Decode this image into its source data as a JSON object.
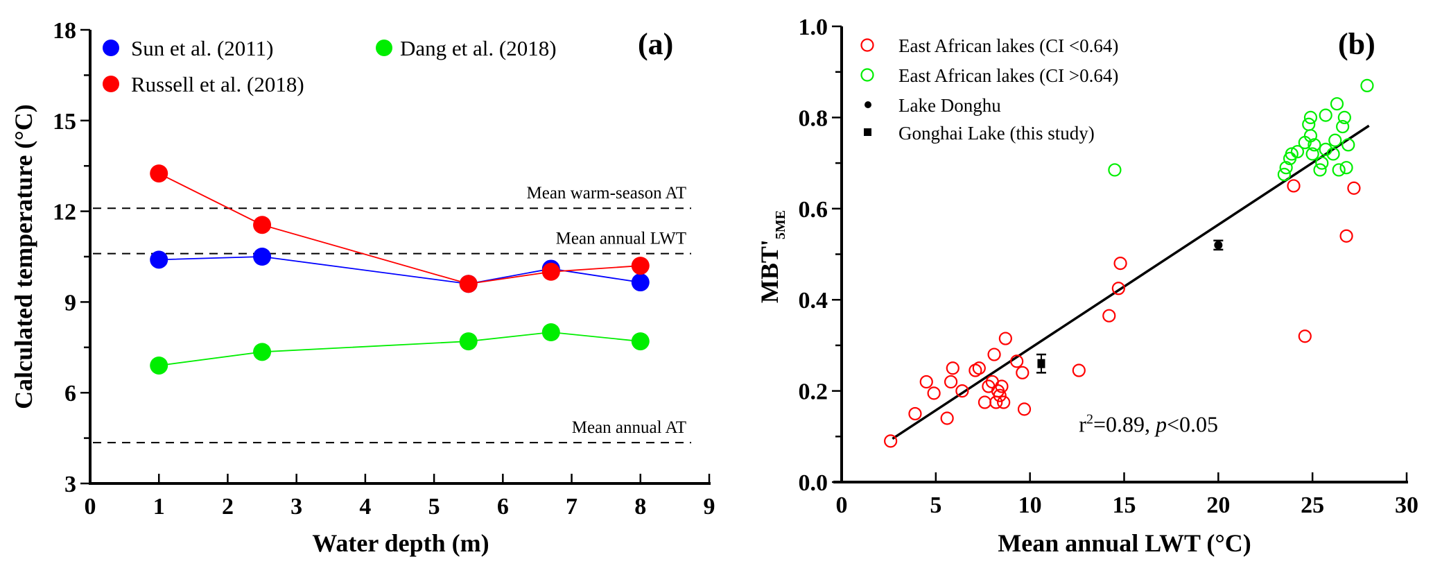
{
  "chart_data": [
    {
      "panel": "(a)",
      "type": "line",
      "title": "",
      "xlabel": "Water depth (m)",
      "ylabel": "Calculated temperature (°C)",
      "xlim": [
        0,
        9
      ],
      "ylim": [
        3,
        18
      ],
      "xticks": [
        0,
        1,
        2,
        3,
        4,
        5,
        6,
        7,
        8,
        9
      ],
      "yticks": [
        3,
        6,
        9,
        12,
        15,
        18
      ],
      "grid": false,
      "legend_position": "top",
      "series": [
        {
          "name": "Sun et al. (2011)",
          "color": "#0000ff",
          "x": [
            1,
            2.5,
            5.5,
            6.7,
            8
          ],
          "y": [
            10.4,
            10.5,
            9.6,
            10.1,
            9.65
          ]
        },
        {
          "name": "Russell et al. (2018)",
          "color": "#ff0000",
          "x": [
            1,
            2.5,
            5.5,
            6.7,
            8
          ],
          "y": [
            13.25,
            11.55,
            9.6,
            10.0,
            10.2
          ]
        },
        {
          "name": "Dang et al. (2018)",
          "color": "#00ee00",
          "x": [
            1,
            2.5,
            5.5,
            6.7,
            8
          ],
          "y": [
            6.9,
            7.35,
            7.7,
            8.0,
            7.7
          ]
        }
      ],
      "reference_lines": [
        {
          "label": "Mean warm-season AT",
          "y": 12.1
        },
        {
          "label": "Mean annual LWT",
          "y": 10.6
        },
        {
          "label": "Mean annual AT",
          "y": 4.35
        }
      ]
    },
    {
      "panel": "(b)",
      "type": "scatter",
      "title": "",
      "xlabel": "Mean annual LWT (°C)",
      "ylabel": "MBT'5ME",
      "ylabel_main": "MBT'",
      "ylabel_sub": "5ME",
      "xlim": [
        0,
        30
      ],
      "ylim": [
        0.0,
        1.0
      ],
      "xticks": [
        0,
        5,
        10,
        15,
        20,
        25,
        30
      ],
      "yticks": [
        "0.0",
        "0.2",
        "0.4",
        "0.6",
        "0.8",
        "1.0"
      ],
      "grid": false,
      "legend_position": "top-left",
      "annotation": {
        "r2_prefix": "r",
        "r2_sup": "2",
        "r2_value": "=0.89, ",
        "p_symbol": "p",
        "p_value": "<0.05",
        "x": 12.6,
        "y": 0.11
      },
      "regression": {
        "x": [
          2.7,
          28.0
        ],
        "y": [
          0.095,
          0.782
        ]
      },
      "series": [
        {
          "name": "East African lakes (CI <0.64)",
          "marker": "open-circle",
          "color": "#ff0000",
          "points": [
            [
              2.6,
              0.09
            ],
            [
              3.9,
              0.15
            ],
            [
              4.5,
              0.22
            ],
            [
              4.9,
              0.195
            ],
            [
              5.6,
              0.14
            ],
            [
              5.8,
              0.22
            ],
            [
              5.9,
              0.25
            ],
            [
              6.4,
              0.2
            ],
            [
              7.1,
              0.245
            ],
            [
              7.3,
              0.25
            ],
            [
              7.6,
              0.175
            ],
            [
              7.8,
              0.21
            ],
            [
              8.0,
              0.22
            ],
            [
              8.1,
              0.28
            ],
            [
              8.2,
              0.175
            ],
            [
              8.3,
              0.2
            ],
            [
              8.4,
              0.19
            ],
            [
              8.5,
              0.21
            ],
            [
              8.6,
              0.175
            ],
            [
              8.7,
              0.315
            ],
            [
              9.3,
              0.265
            ],
            [
              9.6,
              0.24
            ],
            [
              9.7,
              0.16
            ],
            [
              12.6,
              0.245
            ],
            [
              14.2,
              0.365
            ],
            [
              14.7,
              0.425
            ],
            [
              14.8,
              0.48
            ],
            [
              24.0,
              0.65
            ],
            [
              24.6,
              0.32
            ],
            [
              26.8,
              0.54
            ],
            [
              27.2,
              0.645
            ]
          ]
        },
        {
          "name": "East African lakes (CI >0.64)",
          "marker": "open-circle",
          "color": "#00ee00",
          "points": [
            [
              14.5,
              0.685
            ],
            [
              23.5,
              0.675
            ],
            [
              23.6,
              0.69
            ],
            [
              23.8,
              0.71
            ],
            [
              23.9,
              0.72
            ],
            [
              24.2,
              0.725
            ],
            [
              24.6,
              0.745
            ],
            [
              24.8,
              0.785
            ],
            [
              24.9,
              0.8
            ],
            [
              24.9,
              0.76
            ],
            [
              25.0,
              0.72
            ],
            [
              25.1,
              0.74
            ],
            [
              25.4,
              0.685
            ],
            [
              25.5,
              0.7
            ],
            [
              25.7,
              0.73
            ],
            [
              25.7,
              0.805
            ],
            [
              26.1,
              0.72
            ],
            [
              26.2,
              0.75
            ],
            [
              26.3,
              0.83
            ],
            [
              26.4,
              0.685
            ],
            [
              26.6,
              0.78
            ],
            [
              26.7,
              0.8
            ],
            [
              26.8,
              0.69
            ],
            [
              26.9,
              0.74
            ],
            [
              27.9,
              0.87
            ]
          ]
        },
        {
          "name": "Lake Donghu",
          "marker": "filled-circle",
          "color": "#000000",
          "points": [
            [
              20.0,
              0.52
            ]
          ],
          "error": [
            0.01
          ]
        },
        {
          "name": "Gonghai Lake (this study)",
          "marker": "filled-square",
          "color": "#000000",
          "points": [
            [
              10.6,
              0.26
            ]
          ],
          "error": [
            0.02
          ]
        }
      ]
    }
  ]
}
